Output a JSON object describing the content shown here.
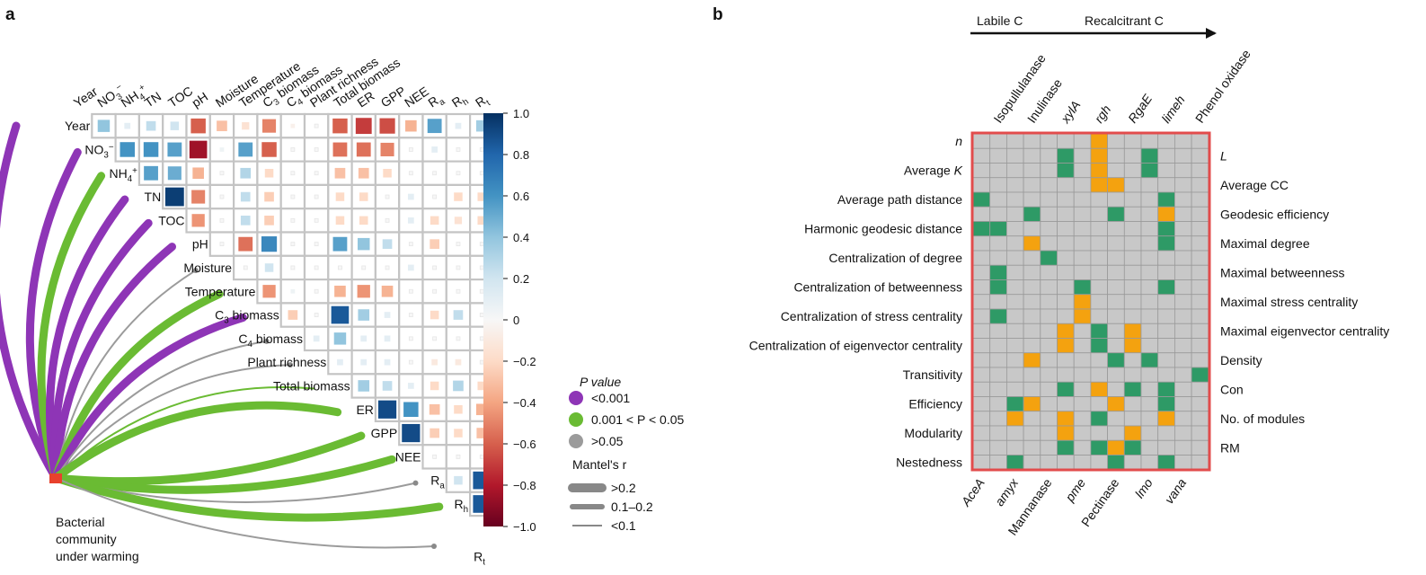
{
  "panel_a": {
    "letter": "a",
    "variables": [
      "Year",
      "NO3−",
      "NH4+",
      "TN",
      "TOC",
      "pH",
      "Moisture",
      "Temperature",
      "C3 biomass",
      "C4 biomass",
      "Plant richness",
      "Total biomass",
      "ER",
      "GPP",
      "NEE",
      "Ra",
      "Rh",
      "Rt"
    ],
    "colorbar_ticks": [
      "1.0",
      "0.8",
      "0.6",
      "0.4",
      "0.2",
      "0",
      "−0.2",
      "−0.4",
      "−0.6",
      "−0.8",
      "−1.0"
    ],
    "legend": {
      "p_title": "P value",
      "p_items": [
        {
          "label": "<0.001",
          "color": "#8e35b6"
        },
        {
          "label": "0.001 < P < 0.05",
          "color": "#6abb33"
        },
        {
          "label": ">0.05",
          "color": "#9b9b9b"
        }
      ],
      "r_title": "Mantel's r",
      "r_items": [
        {
          "label": ">0.2"
        },
        {
          "label": "0.1–0.2"
        },
        {
          "label": "<0.1"
        }
      ]
    },
    "community_label": [
      "Bacterial",
      "community",
      "under warming"
    ],
    "colors": {
      "significant": "#8e35b6",
      "moderate": "#6abb33",
      "ns": "#9b9b9b",
      "node": "#e8412c"
    }
  },
  "panel_b": {
    "letter": "b",
    "arrow_labels": [
      "Labile C",
      "Recalcitrant C"
    ],
    "genes_top": [
      "Isopullulanase",
      "Inulinase",
      "xylA",
      "rgh",
      "RgaE",
      "limeh",
      "Phenol oxidase"
    ],
    "genes_bottom": [
      "AceA",
      "amyx",
      "Mannanase",
      "pme",
      "Pectinase",
      "lmo",
      "vana"
    ],
    "rows_left": [
      "n",
      "Average K",
      "Average path distance",
      "Harmonic geodesic distance",
      "Centralization of degree",
      "Centralization of betweenness",
      "Centralization of stress centrality",
      "Centralization of eigenvector centrality",
      "Transitivity",
      "Efficiency",
      "Modularity",
      "Nestedness"
    ],
    "rows_right": [
      "L",
      "Average CC",
      "Geodesic efficiency",
      "Maximal degree",
      "Maximal betweenness",
      "Maximal stress centrality",
      "Maximal eigenvector centrality",
      "Density",
      "Con",
      "No. of modules",
      "RM"
    ],
    "colors": {
      "positive": "#2e9a66",
      "negative": "#f4a20f",
      "none": "#c8c8c8",
      "frame": "#e24c4c"
    }
  },
  "chart_data": [
    {
      "type": "heatmap",
      "title": "",
      "variables": [
        "Year",
        "NO3−",
        "NH4+",
        "TN",
        "TOC",
        "pH",
        "Moisture",
        "Temperature",
        "C3 biomass",
        "C4 biomass",
        "Plant richness",
        "Total biomass",
        "ER",
        "GPP",
        "NEE",
        "Ra",
        "Rh",
        "Rt"
      ],
      "color_range": [
        -1.0,
        1.0
      ],
      "upper_triangle_r": [
        {
          "row": "Year",
          "values": [
            0.4,
            0.1,
            0.25,
            0.2,
            -0.6,
            -0.3,
            -0.15,
            -0.5,
            -0.05,
            0,
            -0.6,
            -0.7,
            -0.65,
            -0.35,
            0.55,
            0.1,
            0.35
          ]
        },
        {
          "row": "NO3−",
          "values": [
            0.6,
            0.6,
            0.55,
            -0.85,
            0.05,
            0.55,
            -0.6,
            0,
            0,
            -0.55,
            -0.55,
            -0.5,
            0,
            0.1,
            0,
            0
          ]
        },
        {
          "row": "NH4+",
          "values": [
            0.55,
            0.5,
            -0.35,
            0,
            0.3,
            -0.2,
            0,
            0,
            -0.3,
            -0.3,
            -0.2,
            0,
            0,
            0,
            0
          ]
        },
        {
          "row": "TN",
          "values": [
            0.95,
            -0.5,
            0,
            0.25,
            -0.25,
            0,
            0,
            -0.2,
            -0.2,
            0,
            0.1,
            0,
            -0.2,
            -0.2
          ]
        },
        {
          "row": "TOC",
          "values": [
            -0.45,
            0,
            0.25,
            -0.25,
            0,
            0,
            -0.2,
            -0.2,
            0,
            0.1,
            -0.2,
            -0.15,
            -0.2
          ]
        },
        {
          "row": "pH",
          "values": [
            0,
            -0.55,
            0.65,
            0,
            0,
            0.55,
            0.4,
            0.25,
            0,
            -0.25,
            0,
            0
          ]
        },
        {
          "row": "Moisture",
          "values": [
            0,
            0.2,
            0,
            0,
            0,
            0,
            0,
            0.1,
            0,
            0,
            0
          ]
        },
        {
          "row": "Temperature",
          "values": [
            -0.45,
            0.05,
            0,
            -0.35,
            -0.45,
            -0.35,
            0,
            0,
            0,
            0
          ]
        },
        {
          "row": "C3 biomass",
          "values": [
            -0.25,
            0,
            0.85,
            0.35,
            0.1,
            0,
            -0.2,
            0.25,
            0
          ]
        },
        {
          "row": "C4 biomass",
          "values": [
            0.1,
            0.4,
            0.1,
            0.1,
            0,
            0,
            0,
            0
          ]
        },
        {
          "row": "Plant richness",
          "values": [
            0.1,
            0.1,
            0.1,
            0,
            -0.1,
            -0.1,
            0
          ]
        },
        {
          "row": "Total biomass",
          "values": [
            0.35,
            0.25,
            0.1,
            -0.2,
            0.3,
            -0.2
          ]
        },
        {
          "row": "ER",
          "values": [
            0.9,
            0.6,
            -0.3,
            -0.2,
            -0.35
          ]
        },
        {
          "row": "GPP",
          "values": [
            0.9,
            -0.25,
            -0.2,
            -0.3
          ]
        },
        {
          "row": "NEE",
          "values": [
            0,
            0,
            0
          ]
        },
        {
          "row": "Ra",
          "values": [
            0.2,
            0.85
          ]
        },
        {
          "row": "Rh",
          "values": [
            0.85
          ]
        }
      ],
      "mantel_links": [
        {
          "variable": "Year",
          "p": "<0.001",
          "r": ">0.2"
        },
        {
          "variable": "NO3−",
          "p": "<0.001",
          "r": ">0.2"
        },
        {
          "variable": "NH4+",
          "p": "0.001 < P < 0.05",
          "r": ">0.2"
        },
        {
          "variable": "TN",
          "p": "<0.001",
          "r": ">0.2"
        },
        {
          "variable": "TOC",
          "p": "<0.001",
          "r": ">0.2"
        },
        {
          "variable": "pH",
          "p": "<0.001",
          "r": ">0.2"
        },
        {
          "variable": "Moisture",
          "p": ">0.05",
          "r": "<0.1"
        },
        {
          "variable": "Temperature",
          "p": "0.001 < P < 0.05",
          "r": ">0.2"
        },
        {
          "variable": "C3 biomass",
          "p": "<0.001",
          "r": ">0.2"
        },
        {
          "variable": "C4 biomass",
          "p": ">0.05",
          "r": "<0.1"
        },
        {
          "variable": "Plant richness",
          "p": ">0.05",
          "r": "<0.1"
        },
        {
          "variable": "Total biomass",
          "p": "0.001 < P < 0.05",
          "r": "<0.1"
        },
        {
          "variable": "ER",
          "p": "0.001 < P < 0.05",
          "r": ">0.2"
        },
        {
          "variable": "GPP",
          "p": "0.001 < P < 0.05",
          "r": ">0.2"
        },
        {
          "variable": "NEE",
          "p": "0.001 < P < 0.05",
          "r": ">0.2"
        },
        {
          "variable": "Ra",
          "p": ">0.05",
          "r": "<0.1"
        },
        {
          "variable": "Rh",
          "p": "0.001 < P < 0.05",
          "r": ">0.2"
        },
        {
          "variable": "Rt",
          "p": ">0.05",
          "r": "<0.1"
        }
      ]
    },
    {
      "type": "heatmap",
      "title": "",
      "columns": [
        "AceA",
        "Isopullulanase",
        "amyx",
        "Inulinase",
        "Mannanase",
        "xylA",
        "pme",
        "rgh",
        "Pectinase",
        "RgaE",
        "lmo",
        "limeh",
        "vana",
        "Phenol oxidase"
      ],
      "rows": [
        "n",
        "L",
        "Average K",
        "Average CC",
        "Average path distance",
        "Geodesic efficiency",
        "Harmonic geodesic distance",
        "Maximal degree",
        "Centralization of degree",
        "Maximal betweenness",
        "Centralization of betweenness",
        "Maximal stress centrality",
        "Centralization of stress centrality",
        "Maximal eigenvector centrality",
        "Centralization of eigenvector centrality",
        "Density",
        "Transitivity",
        "Con",
        "Efficiency",
        "No. of modules",
        "Modularity",
        "RM",
        "Nestedness"
      ],
      "cell_legend": {
        "1": "positive (green)",
        "-1": "negative (orange)",
        "0": "not significant (grey)"
      },
      "matrix": [
        [
          0,
          0,
          0,
          0,
          0,
          0,
          0,
          -1,
          0,
          0,
          0,
          0,
          0,
          0
        ],
        [
          0,
          0,
          0,
          0,
          0,
          1,
          0,
          -1,
          0,
          0,
          1,
          0,
          0,
          0
        ],
        [
          0,
          0,
          0,
          0,
          0,
          1,
          0,
          -1,
          0,
          0,
          1,
          0,
          0,
          0
        ],
        [
          0,
          0,
          0,
          0,
          0,
          0,
          0,
          -1,
          -1,
          0,
          0,
          0,
          0,
          0
        ],
        [
          1,
          0,
          0,
          0,
          0,
          0,
          0,
          0,
          0,
          0,
          0,
          1,
          0,
          0
        ],
        [
          0,
          0,
          0,
          1,
          0,
          0,
          0,
          0,
          1,
          0,
          0,
          -1,
          0,
          0
        ],
        [
          1,
          1,
          0,
          0,
          0,
          0,
          0,
          0,
          0,
          0,
          0,
          1,
          0,
          0
        ],
        [
          0,
          0,
          0,
          -1,
          0,
          0,
          0,
          0,
          0,
          0,
          0,
          1,
          0,
          0
        ],
        [
          0,
          0,
          0,
          0,
          1,
          0,
          0,
          0,
          0,
          0,
          0,
          0,
          0,
          0
        ],
        [
          0,
          1,
          0,
          0,
          0,
          0,
          0,
          0,
          0,
          0,
          0,
          0,
          0,
          0
        ],
        [
          0,
          1,
          0,
          0,
          0,
          0,
          1,
          0,
          0,
          0,
          0,
          1,
          0,
          0
        ],
        [
          0,
          0,
          0,
          0,
          0,
          0,
          -1,
          0,
          0,
          0,
          0,
          0,
          0,
          0
        ],
        [
          0,
          1,
          0,
          0,
          0,
          0,
          -1,
          0,
          0,
          0,
          0,
          0,
          0,
          0
        ],
        [
          0,
          0,
          0,
          0,
          0,
          -1,
          0,
          1,
          0,
          -1,
          0,
          0,
          0,
          0
        ],
        [
          0,
          0,
          0,
          0,
          0,
          -1,
          0,
          1,
          0,
          -1,
          0,
          0,
          0,
          0
        ],
        [
          0,
          0,
          0,
          -1,
          0,
          0,
          0,
          0,
          1,
          0,
          1,
          0,
          0,
          0
        ],
        [
          0,
          0,
          0,
          0,
          0,
          0,
          0,
          0,
          0,
          0,
          0,
          0,
          0,
          1
        ],
        [
          0,
          0,
          0,
          0,
          0,
          1,
          0,
          -1,
          0,
          1,
          0,
          1,
          0,
          0
        ],
        [
          0,
          0,
          1,
          -1,
          0,
          0,
          0,
          0,
          -1,
          0,
          0,
          1,
          0,
          0
        ],
        [
          0,
          0,
          -1,
          0,
          0,
          -1,
          0,
          1,
          0,
          0,
          0,
          -1,
          0,
          0
        ],
        [
          0,
          0,
          0,
          0,
          0,
          -1,
          0,
          0,
          0,
          -1,
          0,
          0,
          0,
          0
        ],
        [
          0,
          0,
          0,
          0,
          0,
          1,
          0,
          1,
          -1,
          1,
          0,
          0,
          0,
          0
        ],
        [
          0,
          0,
          1,
          0,
          0,
          0,
          0,
          0,
          1,
          0,
          0,
          1,
          0,
          0
        ]
      ]
    }
  ]
}
